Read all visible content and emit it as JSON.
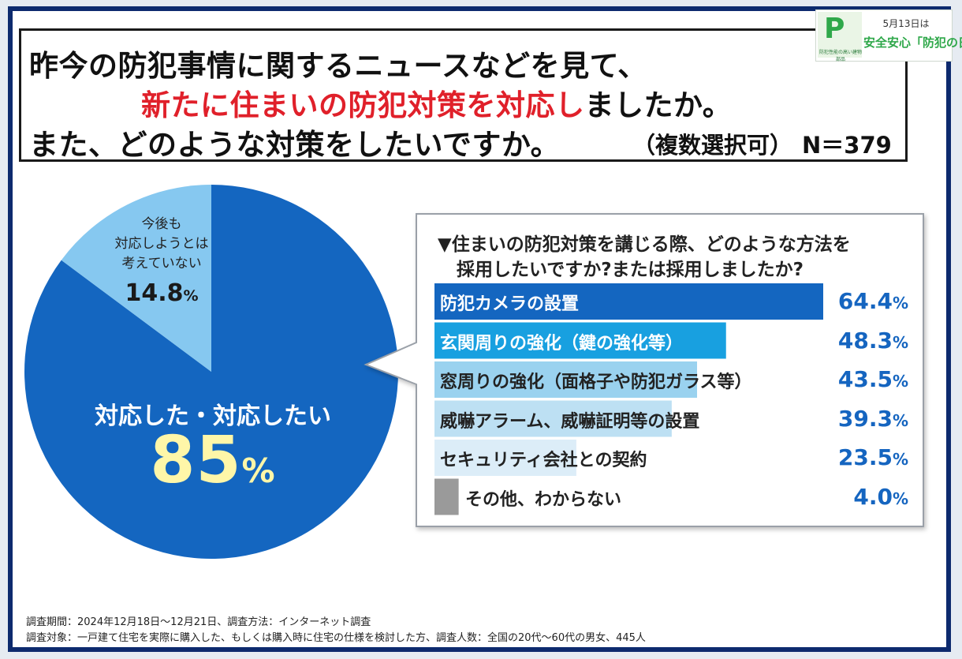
{
  "title": {
    "line1": "昨今の防犯事情に関するニュースなどを見て、",
    "line2_highlight": "新たに住まいの防犯対策を対応し",
    "line2_rest": "ましたか。",
    "line3": "また、どのような対策をしたいですか。",
    "note": "（複数選択可）",
    "n": "N＝379"
  },
  "logo": {
    "mark": "P",
    "tiny": "防犯性能の高い建物部品",
    "date": "5月13日は",
    "main": "安全安心「防犯の日」"
  },
  "colors": {
    "pie_main": "#1466c0",
    "pie_minor": "#86c8f0",
    "pct_text": "#1565c0",
    "frame": "#0d2a6e"
  },
  "chart_data": [
    {
      "type": "pie",
      "slices": [
        {
          "label": "対応した・対応したい",
          "value": 85,
          "value_text": "85",
          "unit": "%",
          "color": "#1466c0"
        },
        {
          "label": "今後も対応しようとは考えていない",
          "label_lines": [
            "今後も",
            "対応しようとは",
            "考えていない"
          ],
          "value": 14.8,
          "value_text": "14.8",
          "unit": "%",
          "color": "#86c8f0"
        }
      ]
    },
    {
      "type": "bar",
      "title_lines": [
        "▼住まいの防犯対策を講じる際、どのような方法を",
        "採用したいですか?または採用しましたか?"
      ],
      "categories": [
        "防犯カメラの設置",
        "玄関周りの強化（鍵の強化等）",
        "窓周りの強化（面格子や防犯ガラス等）",
        "威嚇アラーム、威嚇証明等の設置",
        "セキュリティ会社との契約",
        "その他、わからない"
      ],
      "values": [
        64.4,
        48.3,
        43.5,
        39.3,
        23.5,
        4.0
      ],
      "value_texts": [
        "64.4",
        "48.3",
        "43.5",
        "39.3",
        "23.5",
        "4.0"
      ],
      "unit": "%",
      "bar_colors": [
        "#1466c0",
        "#18a0e0",
        "#9ad2ef",
        "#bde0f3",
        "#dcedf8",
        "#9a9a9a"
      ],
      "label_colors": [
        "#ffffff",
        "#ffffff",
        "#222222",
        "#222222",
        "#222222",
        "#222222"
      ]
    }
  ],
  "footer": {
    "line1": "調査期間：2024年12月18日～12月21日、調査方法：インターネット調査",
    "line2": "調査対象：一戸建て住宅を実際に購入した、もしくは購入時に住宅の仕様を検討した方、調査人数：全国の20代～60代の男女、445人"
  }
}
